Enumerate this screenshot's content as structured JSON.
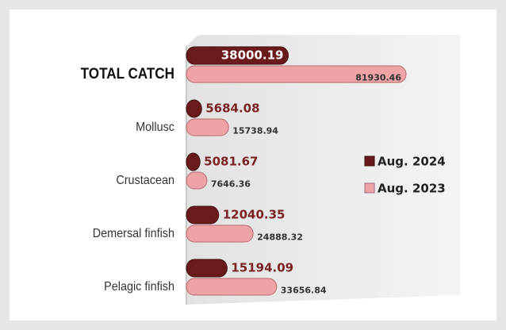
{
  "chart_data": {
    "type": "bar",
    "orientation": "horizontal",
    "categories": [
      "TOTAL CATCH",
      "Mollusc",
      "Crustacean",
      "Demersal finfish",
      "Pelagic finfish"
    ],
    "series": [
      {
        "name": "Aug. 2024",
        "color": "#6b1a1c",
        "values": [
          38000.19,
          5684.08,
          5081.67,
          12040.35,
          15194.09
        ]
      },
      {
        "name": "Aug. 2023",
        "color": "#eea3a6",
        "values": [
          81930.46,
          15738.94,
          7646.36,
          24888.32,
          33656.84
        ]
      }
    ],
    "legend": "right"
  }
}
